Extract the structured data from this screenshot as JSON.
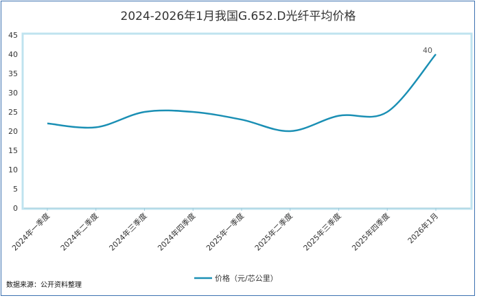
{
  "chart_data": {
    "type": "line",
    "title": "2024-2026年1月我国G.652.D光纤平均价格",
    "categories": [
      "2024年一季度",
      "2024年二季度",
      "2024年三季度",
      "2024年四季度",
      "2025年一季度",
      "2025年二季度",
      "2025年三季度",
      "2025年四季度",
      "2026年1月"
    ],
    "series": [
      {
        "name": "价格（元/芯公里）",
        "values": [
          22,
          21,
          25,
          25,
          23,
          20,
          24,
          25,
          40
        ]
      }
    ],
    "ylim": [
      0,
      45
    ],
    "yticks": [
      0,
      5,
      10,
      15,
      20,
      25,
      30,
      35,
      40,
      45
    ],
    "data_labels": [
      {
        "index": 8,
        "text": "40"
      }
    ],
    "grid": false,
    "legend_position": "bottom",
    "colors": {
      "line": "#1a8fb4",
      "plot_border": "#bfe3ef",
      "axis": "#9ec9da"
    }
  },
  "source_note": "数据来源：公开资料整理"
}
